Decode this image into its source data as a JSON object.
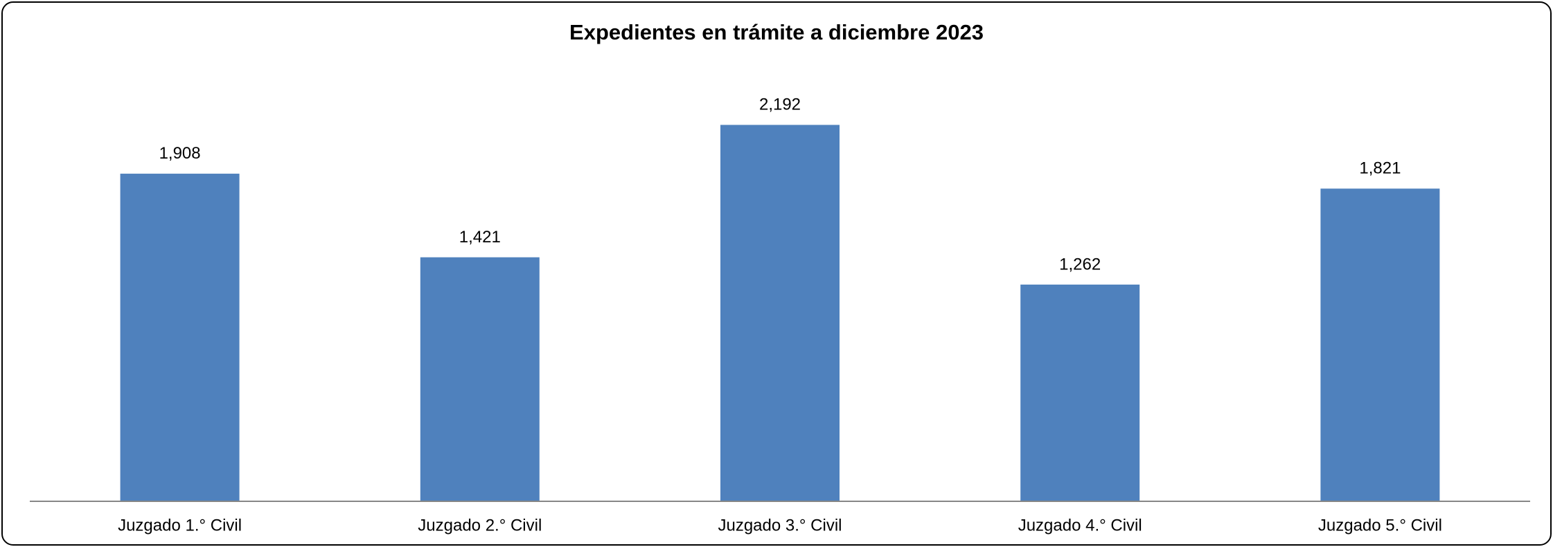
{
  "chart_data": {
    "type": "bar",
    "title": "Expedientes en trámite a diciembre 2023",
    "categories": [
      "Juzgado 1.° Civil",
      "Juzgado 2.° Civil",
      "Juzgado 3.° Civil",
      "Juzgado 4.° Civil",
      "Juzgado 5.° Civil"
    ],
    "values": [
      1908,
      1421,
      2192,
      1262,
      1821
    ],
    "value_labels": [
      "1,908",
      "1,421",
      "2,192",
      "1,262",
      "1,821"
    ],
    "color": "#4f81bd",
    "ylim": [
      0,
      2500
    ]
  }
}
